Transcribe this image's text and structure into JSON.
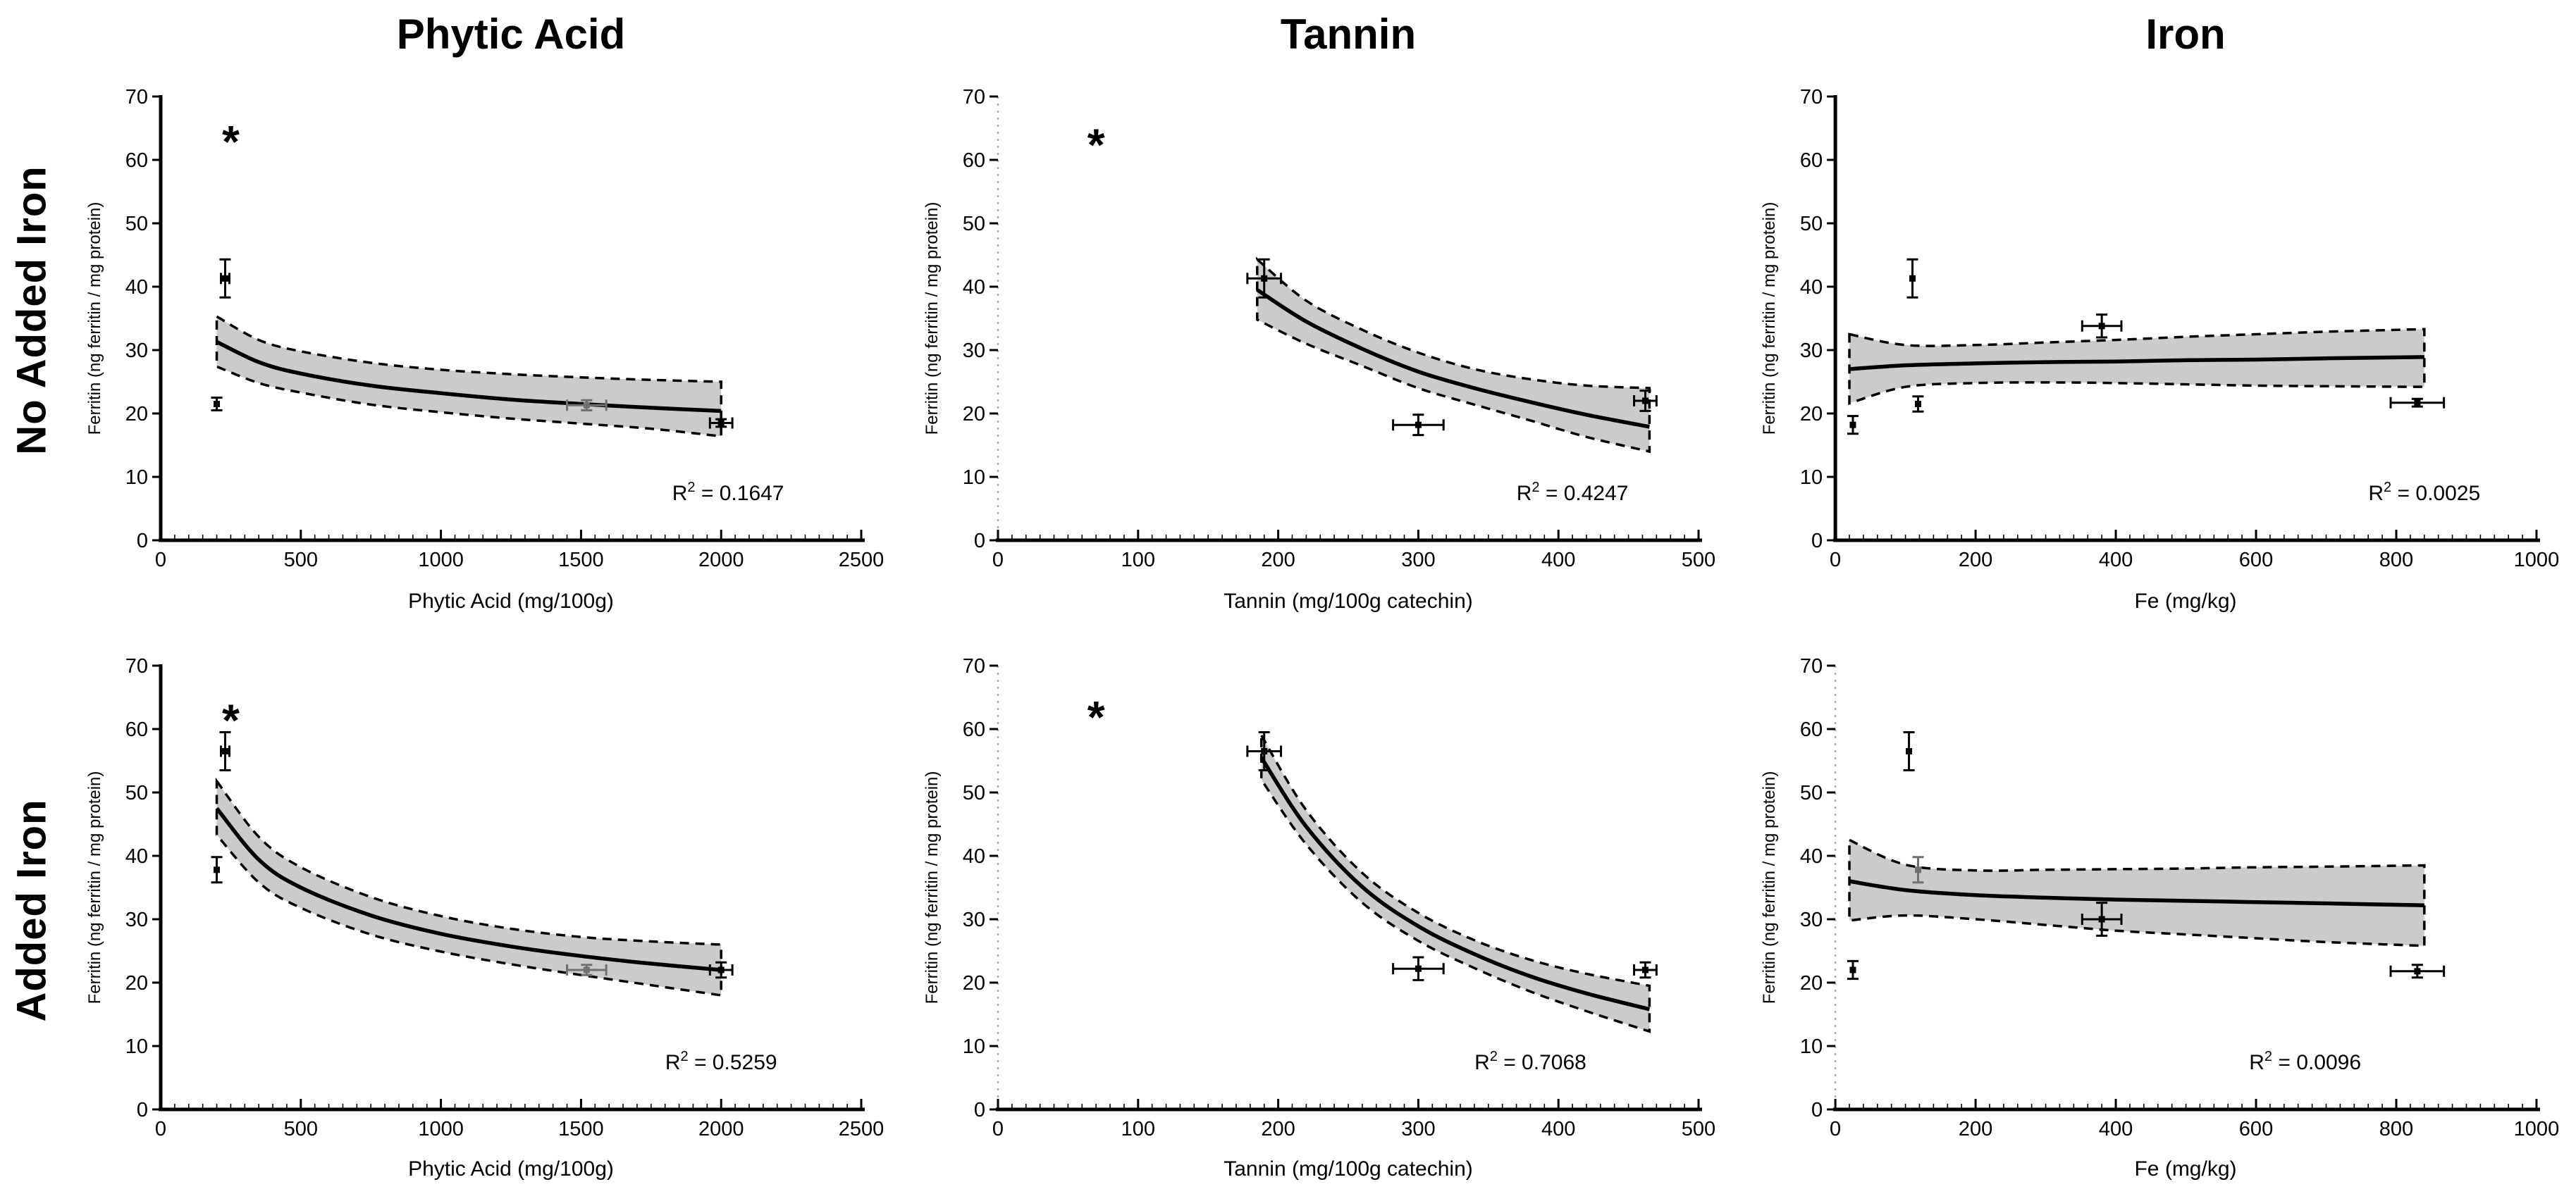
{
  "figure_title": "",
  "rows": [
    {
      "label": "No Added Iron"
    },
    {
      "label": "Added Iron"
    }
  ],
  "columns": [
    {
      "title": "Phytic Acid"
    },
    {
      "title": "Tannin"
    },
    {
      "title": "Iron"
    }
  ],
  "axes": {
    "ylabel": "Ferritin (ng ferritin / mg protein)",
    "ylim": [
      0,
      70
    ],
    "yticks": [
      0,
      10,
      20,
      30,
      40,
      50,
      60,
      70
    ]
  },
  "style": {
    "ink": "#000000",
    "band_fill": "#cbcbcb",
    "dotted_axis": "#b0b0b0",
    "muted_point": "#707070",
    "background": "#ffffff"
  },
  "r_squared_prefix": "R",
  "r_squared_exponent": "2",
  "chart_data": [
    {
      "id": "no-added-iron-phytic-acid",
      "type": "scatter",
      "row": 0,
      "col": 0,
      "title": "Phytic Acid",
      "xlabel": "Phytic Acid (mg/100g)",
      "xlim": [
        0,
        2500
      ],
      "xticks": [
        0,
        500,
        1000,
        1500,
        2000,
        2500
      ],
      "x_minor_step": 50,
      "y_axis_style": "solid",
      "r_squared": "0.1647",
      "r2_x": 0.81,
      "asterisk": {
        "x": 250,
        "y": 65
      },
      "points": [
        {
          "x": 230,
          "y": 41.3,
          "xerr": 15,
          "yerr": 3.0
        },
        {
          "x": 200,
          "y": 21.5,
          "xerr": 0,
          "yerr": 1.0
        },
        {
          "x": 1520,
          "y": 21.3,
          "xerr": 70,
          "yerr": 0.8,
          "muted": true
        },
        {
          "x": 2000,
          "y": 18.5,
          "xerr": 40,
          "yerr": 0.6
        }
      ],
      "fit": {
        "x": [
          200,
          350,
          500,
          750,
          1000,
          1250,
          1500,
          1750,
          2000
        ],
        "mid": [
          31.3,
          28.1,
          26.3,
          24.4,
          23.2,
          22.2,
          21.5,
          20.9,
          20.4
        ],
        "upper": [
          35.3,
          31.6,
          29.8,
          28.0,
          26.9,
          26.2,
          25.7,
          25.3,
          25.0
        ],
        "lower": [
          27.4,
          24.8,
          23.3,
          21.4,
          20.2,
          19.2,
          18.4,
          17.6,
          16.4
        ]
      }
    },
    {
      "id": "no-added-iron-tannin",
      "type": "scatter",
      "row": 0,
      "col": 1,
      "title": "Tannin",
      "xlabel": "Tannin (mg/100g catechin)",
      "xlim": [
        0,
        500
      ],
      "xticks": [
        0,
        100,
        200,
        300,
        400,
        500
      ],
      "x_minor_step": 10,
      "y_axis_style": "dotted",
      "r_squared": "0.4247",
      "r2_x": 0.82,
      "asterisk": {
        "x": 70,
        "y": 64.5
      },
      "points": [
        {
          "x": 190,
          "y": 41.3,
          "xerr": 12,
          "yerr": 3.0
        },
        {
          "x": 300,
          "y": 18.2,
          "xerr": 18,
          "yerr": 1.6
        },
        {
          "x": 462,
          "y": 22.0,
          "xerr": 8,
          "yerr": 1.6
        }
      ],
      "fit": {
        "x": [
          185,
          220,
          260,
          300,
          340,
          380,
          420,
          465
        ],
        "mid": [
          39.5,
          34.5,
          30.2,
          26.6,
          24.0,
          21.8,
          19.8,
          17.9
        ],
        "upper": [
          44.3,
          37.8,
          33.2,
          29.6,
          27.0,
          25.4,
          24.4,
          24.0
        ],
        "lower": [
          34.8,
          31.0,
          27.5,
          24.0,
          21.4,
          18.9,
          16.3,
          14.0
        ]
      }
    },
    {
      "id": "no-added-iron-iron",
      "type": "scatter",
      "row": 0,
      "col": 2,
      "title": "Iron",
      "xlabel": "Fe (mg/kg)",
      "xlim": [
        0,
        1000
      ],
      "xticks": [
        0,
        200,
        400,
        600,
        800,
        1000
      ],
      "x_minor_step": 20,
      "y_axis_style": "solid",
      "r_squared": "0.0025",
      "r2_x": 0.84,
      "asterisk": null,
      "points": [
        {
          "x": 25,
          "y": 18.2,
          "xerr": 0,
          "yerr": 1.4
        },
        {
          "x": 110,
          "y": 41.3,
          "xerr": 0,
          "yerr": 3.0
        },
        {
          "x": 118,
          "y": 21.5,
          "xerr": 0,
          "yerr": 1.2
        },
        {
          "x": 380,
          "y": 33.8,
          "xerr": 28,
          "yerr": 1.8
        },
        {
          "x": 830,
          "y": 21.7,
          "xerr": 38,
          "yerr": 0.6
        }
      ],
      "fit": {
        "x": [
          20,
          100,
          200,
          300,
          400,
          500,
          600,
          700,
          840
        ],
        "mid": [
          27.0,
          27.6,
          27.9,
          28.1,
          28.2,
          28.4,
          28.5,
          28.7,
          28.9
        ],
        "upper": [
          32.5,
          30.8,
          30.8,
          31.2,
          31.6,
          32.1,
          32.5,
          32.9,
          33.3
        ],
        "lower": [
          21.6,
          24.2,
          24.8,
          24.9,
          24.8,
          24.6,
          24.4,
          24.3,
          24.2
        ]
      }
    },
    {
      "id": "added-iron-phytic-acid",
      "type": "scatter",
      "row": 1,
      "col": 0,
      "title": "Phytic Acid",
      "xlabel": "Phytic Acid (mg/100g)",
      "xlim": [
        0,
        2500
      ],
      "xticks": [
        0,
        500,
        1000,
        1500,
        2000,
        2500
      ],
      "x_minor_step": 50,
      "y_axis_style": "solid",
      "r_squared": "0.5259",
      "r2_x": 0.8,
      "asterisk": {
        "x": 250,
        "y": 63.5
      },
      "points": [
        {
          "x": 230,
          "y": 56.5,
          "xerr": 15,
          "yerr": 3.0
        },
        {
          "x": 200,
          "y": 37.8,
          "xerr": 0,
          "yerr": 2.0
        },
        {
          "x": 1520,
          "y": 22.0,
          "xerr": 70,
          "yerr": 0.8,
          "muted": true
        },
        {
          "x": 2000,
          "y": 22.0,
          "xerr": 40,
          "yerr": 1.2
        }
      ],
      "fit": {
        "x": [
          200,
          350,
          500,
          750,
          1000,
          1250,
          1500,
          1750,
          2000
        ],
        "mid": [
          47.5,
          39.4,
          35.0,
          30.6,
          27.7,
          25.7,
          24.2,
          23.0,
          22.0
        ],
        "upper": [
          51.8,
          43.0,
          38.2,
          33.5,
          30.5,
          28.5,
          27.2,
          26.5,
          26.0
        ],
        "lower": [
          43.3,
          35.8,
          31.8,
          27.6,
          24.9,
          22.9,
          21.2,
          19.6,
          18.0
        ]
      }
    },
    {
      "id": "added-iron-tannin",
      "type": "scatter",
      "row": 1,
      "col": 1,
      "title": "Tannin",
      "xlabel": "Tannin (mg/100g catechin)",
      "xlim": [
        0,
        500
      ],
      "xticks": [
        0,
        100,
        200,
        300,
        400,
        500
      ],
      "x_minor_step": 10,
      "y_axis_style": "dotted",
      "r_squared": "0.7068",
      "r2_x": 0.76,
      "asterisk": {
        "x": 70,
        "y": 64
      },
      "points": [
        {
          "x": 190,
          "y": 56.5,
          "xerr": 12,
          "yerr": 3.0
        },
        {
          "x": 300,
          "y": 22.2,
          "xerr": 18,
          "yerr": 1.8
        },
        {
          "x": 462,
          "y": 22.0,
          "xerr": 8,
          "yerr": 1.2
        }
      ],
      "fit": {
        "x": [
          188,
          220,
          260,
          300,
          340,
          380,
          420,
          465
        ],
        "mid": [
          55.5,
          44.6,
          35.1,
          28.9,
          24.5,
          21.0,
          18.3,
          15.8
        ],
        "upper": [
          59.0,
          47.2,
          37.3,
          31.0,
          26.7,
          23.6,
          21.4,
          19.5
        ],
        "lower": [
          52.0,
          41.8,
          32.6,
          26.6,
          22.3,
          18.6,
          15.5,
          12.3
        ]
      }
    },
    {
      "id": "added-iron-iron",
      "type": "scatter",
      "row": 1,
      "col": 2,
      "title": "Iron",
      "xlabel": "Fe (mg/kg)",
      "xlim": [
        0,
        1000
      ],
      "xticks": [
        0,
        200,
        400,
        600,
        800,
        1000
      ],
      "x_minor_step": 20,
      "y_axis_style": "dotted",
      "r_squared": "0.0096",
      "r2_x": 0.67,
      "asterisk": null,
      "points": [
        {
          "x": 25,
          "y": 22.0,
          "xerr": 0,
          "yerr": 1.4
        },
        {
          "x": 105,
          "y": 56.5,
          "xerr": 0,
          "yerr": 3.0
        },
        {
          "x": 118,
          "y": 37.8,
          "xerr": 0,
          "yerr": 2.0,
          "muted": true
        },
        {
          "x": 380,
          "y": 30.0,
          "xerr": 28,
          "yerr": 2.6
        },
        {
          "x": 830,
          "y": 21.8,
          "xerr": 38,
          "yerr": 1.0
        }
      ],
      "fit": {
        "x": [
          20,
          100,
          200,
          300,
          400,
          500,
          600,
          700,
          840
        ],
        "mid": [
          36.0,
          34.6,
          33.8,
          33.4,
          33.1,
          32.9,
          32.7,
          32.5,
          32.2
        ],
        "upper": [
          42.5,
          38.6,
          37.7,
          37.8,
          37.9,
          38.0,
          38.2,
          38.3,
          38.5
        ],
        "lower": [
          29.8,
          30.6,
          30.0,
          29.1,
          28.2,
          27.6,
          27.0,
          26.4,
          25.8
        ]
      }
    }
  ]
}
